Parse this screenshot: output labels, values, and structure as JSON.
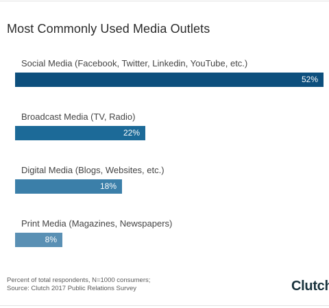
{
  "chart_data": {
    "type": "bar",
    "orientation": "horizontal",
    "title": "Most Commonly Used Media Outlets",
    "categories": [
      "Social Media (Facebook, Twitter, Linkedin, YouTube, etc.)",
      "Broadcast Media (TV, Radio)",
      "Digital Media (Blogs, Websites, etc.)",
      "Print Media (Magazines, Newspapers)"
    ],
    "values": [
      52,
      22,
      18,
      8
    ],
    "value_labels": [
      "52%",
      "22%",
      "18%",
      "8%"
    ],
    "unit": "%",
    "xlim": [
      0,
      52
    ],
    "colors": [
      "#0d4f7d",
      "#1c6a98",
      "#3b7fa9",
      "#5a90b4"
    ],
    "grid": false
  },
  "footer": {
    "note_line1": "Percent of total respondents, N=1000 consumers;",
    "note_line2": "Source: Clutch 2017 Public Relations Survey",
    "logo": "Clutch"
  }
}
